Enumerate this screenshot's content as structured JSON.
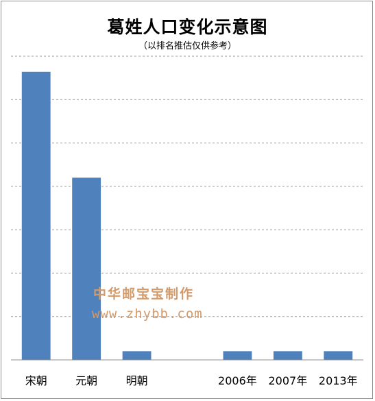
{
  "chart_data": {
    "type": "bar",
    "title": "葛姓人口变化示意图",
    "subtitle": "（以排名推估仅供参考）",
    "categories": [
      "宋朝",
      "元朝",
      "明朝",
      "",
      "2006年",
      "2007年",
      "2013年"
    ],
    "values": [
      33.2,
      21.0,
      1.0,
      0,
      1.0,
      1.0,
      1.0
    ],
    "ylim": [
      0,
      35
    ],
    "gridlines": [
      5,
      10,
      15,
      20,
      25,
      30,
      35
    ],
    "grid": true,
    "legend": "none",
    "bar_color": "#4f81bd",
    "grid_color": "#9a9a9a"
  },
  "watermark": {
    "line1": "中华邮宝宝制作",
    "line2": "www.zhybb.com",
    "color": "#d49a6a"
  }
}
